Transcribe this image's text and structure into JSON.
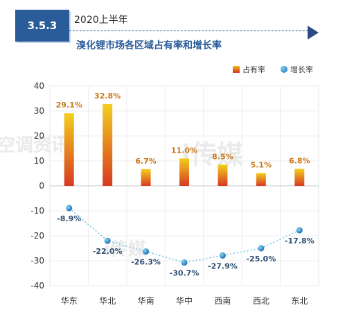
{
  "header": {
    "badge": "3.5.3",
    "subtitle": "2020上半年",
    "title": "溴化锂市场各区域占有率和增长率"
  },
  "legend": {
    "share_label": "占有率",
    "growth_label": "增长率"
  },
  "colors": {
    "bar_top": "#f2cf1e",
    "bar_bottom": "#d83a22",
    "line": "#6cc3e0",
    "dot": "#1a72b8",
    "bar_label": "#c9791a",
    "line_label": "#2d4f73",
    "brand": "#2a5c9a"
  },
  "watermarks": [
    "空调资讯",
    "i传媒",
    "i传媒"
  ],
  "chart_data": {
    "type": "bar",
    "categories": [
      "华东",
      "华北",
      "华南",
      "华中",
      "西南",
      "西北",
      "东北"
    ],
    "series": [
      {
        "name": "占有率",
        "type": "bar",
        "values": [
          29.1,
          32.8,
          6.7,
          11.0,
          8.5,
          5.1,
          6.8
        ],
        "labels": [
          "29.1%",
          "32.8%",
          "6.7%",
          "11.0%",
          "8.5%",
          "5.1%",
          "6.8%"
        ]
      },
      {
        "name": "增长率",
        "type": "line",
        "values": [
          -8.9,
          -22.0,
          -26.3,
          -30.7,
          -27.9,
          -25.0,
          -17.8
        ],
        "labels": [
          "-8.9%",
          "-22.0%",
          "-26.3%",
          "-30.7%",
          "-27.9%",
          "-25.0%",
          "-17.8%"
        ]
      }
    ],
    "ylim": [
      -40,
      40
    ],
    "yticks": [
      "40",
      "30",
      "20",
      "10",
      "0",
      "-10",
      "-20",
      "-30",
      "-40"
    ],
    "grid": true,
    "legend_position": "top-right"
  }
}
